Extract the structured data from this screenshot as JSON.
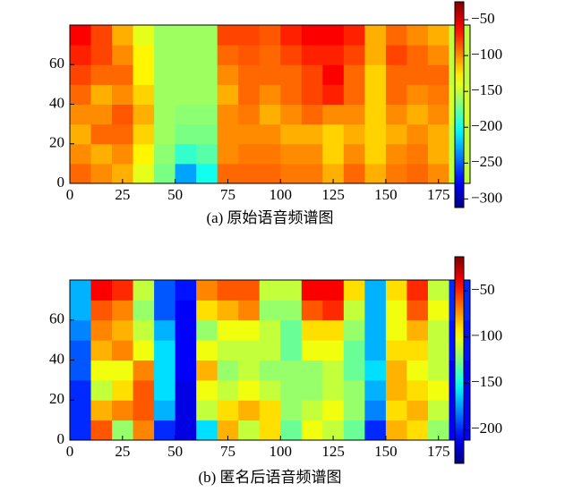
{
  "chart_data": [
    {
      "type": "heatmap",
      "caption": "(a) 原始语音频谱图",
      "colormap": "jet",
      "x": [
        5,
        15,
        25,
        35,
        45,
        55,
        65,
        75,
        85,
        95,
        105,
        115,
        125,
        135,
        145,
        155,
        165,
        175,
        185
      ],
      "y": [
        5,
        15,
        25,
        35,
        45,
        55,
        65,
        75
      ],
      "z": [
        [
          -90,
          -100,
          -110,
          -140,
          -170,
          -230,
          -200,
          -90,
          -90,
          -90,
          -95,
          -95,
          -110,
          -90,
          -110,
          -95,
          -90,
          -100,
          -150
        ],
        [
          -100,
          -110,
          -100,
          -130,
          -165,
          -190,
          -180,
          -100,
          -95,
          -95,
          -100,
          -100,
          -120,
          -100,
          -120,
          -100,
          -95,
          -110,
          -150
        ],
        [
          -110,
          -90,
          -90,
          -120,
          -160,
          -170,
          -170,
          -100,
          -100,
          -100,
          -110,
          -110,
          -120,
          -110,
          -120,
          -110,
          -100,
          -110,
          -150
        ],
        [
          -100,
          -100,
          -85,
          -110,
          -160,
          -165,
          -165,
          -100,
          -95,
          -110,
          -100,
          -90,
          -100,
          -100,
          -120,
          -100,
          -110,
          -100,
          -145
        ],
        [
          -90,
          -110,
          -100,
          -120,
          -160,
          -160,
          -160,
          -110,
          -90,
          -100,
          -90,
          -80,
          -70,
          -90,
          -120,
          -90,
          -100,
          -95,
          -145
        ],
        [
          -80,
          -90,
          -90,
          -130,
          -160,
          -160,
          -160,
          -100,
          -90,
          -90,
          -90,
          -80,
          -60,
          -90,
          -120,
          -90,
          -90,
          -90,
          -150
        ],
        [
          -70,
          -80,
          -100,
          -130,
          -160,
          -160,
          -160,
          -90,
          -85,
          -90,
          -80,
          -70,
          -70,
          -80,
          -110,
          -80,
          -90,
          -100,
          -150
        ],
        [
          -60,
          -80,
          -110,
          -140,
          -160,
          -160,
          -160,
          -80,
          -80,
          -85,
          -70,
          -60,
          -60,
          -70,
          -110,
          -90,
          -100,
          -110,
          -150
        ]
      ],
      "xlim": [
        0,
        190
      ],
      "ylim": [
        0,
        80
      ],
      "xticks": [
        0,
        25,
        50,
        75,
        100,
        125,
        150,
        175
      ],
      "yticks": [
        0,
        20,
        40,
        60
      ],
      "clim": [
        -312,
        -25
      ],
      "cticks": [
        {
          "value": -50,
          "label": "−50"
        },
        {
          "value": -100,
          "label": "−100"
        },
        {
          "value": -150,
          "label": "−150"
        },
        {
          "value": -200,
          "label": "−200"
        },
        {
          "value": -250,
          "label": "−250"
        },
        {
          "value": -300,
          "label": "−300"
        }
      ]
    },
    {
      "type": "heatmap",
      "caption": "(b) 匿名后语音频谱图",
      "colormap": "jet",
      "x": [
        5,
        15,
        25,
        35,
        45,
        55,
        65,
        75,
        85,
        95,
        105,
        115,
        125,
        135,
        145,
        155,
        165,
        175,
        185
      ],
      "y": [
        5,
        15,
        25,
        35,
        45,
        55,
        65,
        75
      ],
      "z": [
        [
          -200,
          -60,
          -120,
          -70,
          -200,
          -215,
          -160,
          -80,
          -110,
          -90,
          -130,
          -100,
          -110,
          -130,
          -200,
          -80,
          -90,
          -120,
          -210
        ],
        [
          -200,
          -80,
          -70,
          -60,
          -170,
          -215,
          -110,
          -90,
          -80,
          -90,
          -120,
          -110,
          -100,
          -120,
          -180,
          -90,
          -80,
          -110,
          -210
        ],
        [
          -200,
          -110,
          -90,
          -60,
          -160,
          -215,
          -100,
          -110,
          -100,
          -110,
          -120,
          -120,
          -110,
          -120,
          -170,
          -80,
          -90,
          -100,
          -210
        ],
        [
          -190,
          -100,
          -100,
          -70,
          -160,
          -210,
          -80,
          -120,
          -110,
          -120,
          -120,
          -120,
          -110,
          -130,
          -160,
          -80,
          -100,
          -110,
          -210
        ],
        [
          -190,
          -80,
          -70,
          -100,
          -160,
          -210,
          -100,
          -110,
          -110,
          -110,
          -130,
          -100,
          -100,
          -130,
          -170,
          -90,
          -90,
          -110,
          -205
        ],
        [
          -180,
          -70,
          -80,
          -110,
          -170,
          -210,
          -120,
          -100,
          -100,
          -110,
          -130,
          -90,
          -90,
          -120,
          -170,
          -100,
          -80,
          -110,
          -205
        ],
        [
          -170,
          -60,
          -70,
          -120,
          -190,
          -210,
          -90,
          -80,
          -70,
          -120,
          -120,
          -60,
          -50,
          -110,
          -170,
          -100,
          -60,
          -100,
          -200
        ],
        [
          -170,
          -40,
          -50,
          -110,
          -190,
          -205,
          -70,
          -60,
          -60,
          -110,
          -110,
          -40,
          -40,
          -90,
          -170,
          -90,
          -50,
          -110,
          -200
        ]
      ],
      "xlim": [
        0,
        190
      ],
      "ylim": [
        0,
        80
      ],
      "xticks": [
        0,
        25,
        50,
        75,
        100,
        125,
        150,
        175
      ],
      "yticks": [
        0,
        20,
        40,
        60
      ],
      "clim": [
        -237,
        -13
      ],
      "cticks": [
        {
          "value": -50,
          "label": "−50"
        },
        {
          "value": -100,
          "label": "−100"
        },
        {
          "value": -150,
          "label": "−150"
        },
        {
          "value": -200,
          "label": "−200"
        }
      ]
    }
  ]
}
